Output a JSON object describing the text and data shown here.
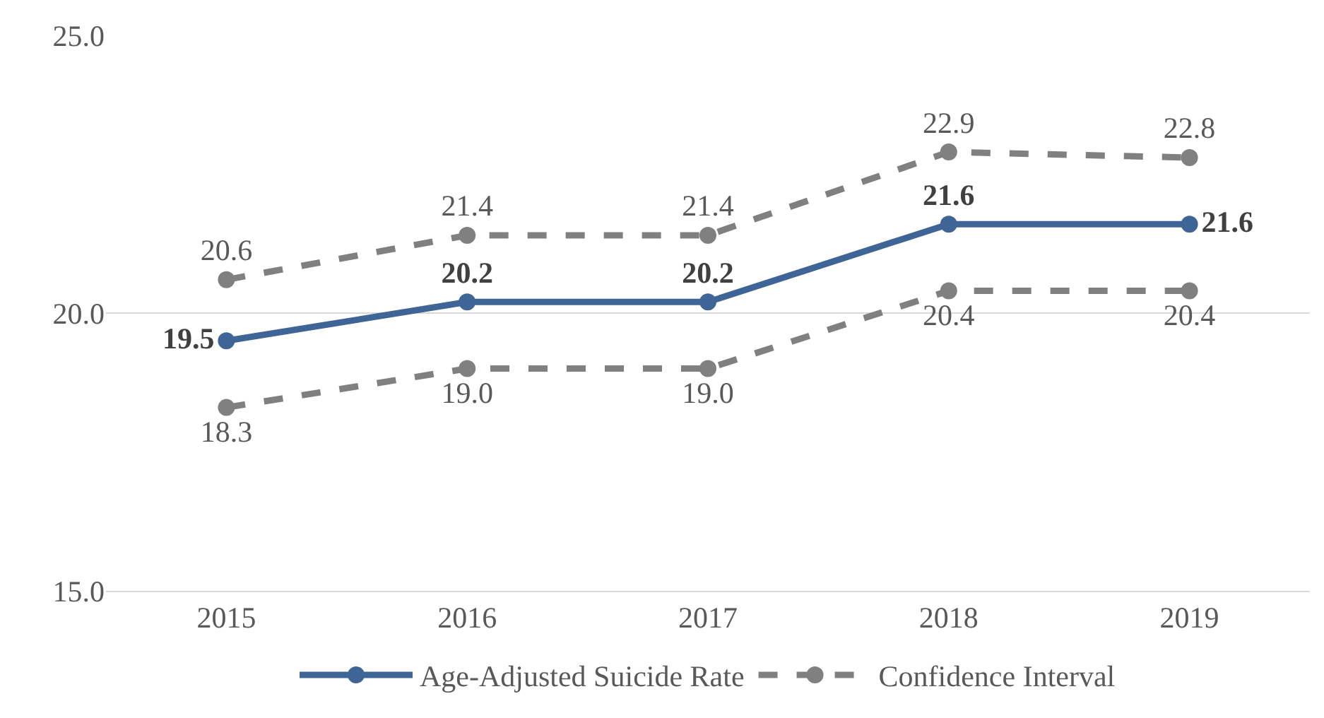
{
  "chart_data": {
    "type": "line",
    "categories": [
      "2015",
      "2016",
      "2017",
      "2018",
      "2019"
    ],
    "series": [
      {
        "name": "Age-Adjusted Suicide Rate",
        "color": "#3f6597",
        "values": [
          19.5,
          20.2,
          20.2,
          21.6,
          21.6
        ],
        "value_labels": [
          "19.5",
          "20.2",
          "20.2",
          "21.6",
          "21.6"
        ],
        "line_style": "solid"
      },
      {
        "name": "Confidence Interval",
        "color": "#808080",
        "values": [
          20.6,
          21.4,
          21.4,
          22.9,
          22.8
        ],
        "value_labels": [
          "20.6",
          "21.4",
          "21.4",
          "22.9",
          "22.8"
        ],
        "line_style": "dashed"
      },
      {
        "color": "#808080",
        "values": [
          18.3,
          19.0,
          19.0,
          20.4,
          20.4
        ],
        "value_labels": [
          "18.3",
          "19.0",
          "19.0",
          "20.4",
          "20.4"
        ],
        "line_style": "dashed"
      }
    ],
    "ylim": [
      15,
      25
    ],
    "yticks": [
      {
        "value": 15,
        "label": "15.0"
      },
      {
        "value": 20,
        "label": "20.0"
      },
      {
        "value": 25,
        "label": "25.0"
      }
    ],
    "grid": "y",
    "legend": "bottom",
    "marker": "circle"
  }
}
